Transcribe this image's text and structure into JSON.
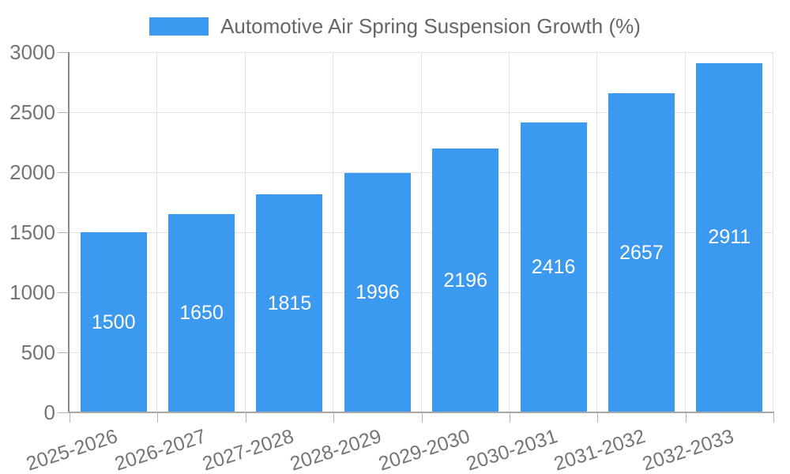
{
  "legend": {
    "label": "Automotive Air Spring Suspension Growth (%)"
  },
  "chart_data": {
    "type": "bar",
    "title": "Automotive Air Spring Suspension Growth (%)",
    "categories": [
      "2025-2026",
      "2026-2027",
      "2027-2028",
      "2028-2029",
      "2029-2030",
      "2030-2031",
      "2031-2032",
      "2032-2033"
    ],
    "series": [
      {
        "name": "Automotive Air Spring Suspension Growth (%)",
        "values": [
          1500,
          1650,
          1815,
          1996,
          2196,
          2416,
          2657,
          2911
        ]
      }
    ],
    "values": [
      1500,
      1650,
      1815,
      1996,
      2196,
      2416,
      2657,
      2911
    ],
    "value_labels": [
      "1500",
      "1650",
      "1815",
      "1996",
      "2196",
      "2416",
      "2657",
      "2911"
    ],
    "xlabel": "",
    "ylabel": "",
    "ylim": [
      0,
      3000
    ],
    "yticks": [
      0,
      500,
      1000,
      1500,
      2000,
      2500,
      3000
    ],
    "grid": true,
    "legend_position": "top-center",
    "x_tick_rotation_deg": -18,
    "colors": {
      "bar": "#3B99EF",
      "grid": "#E2E2E2",
      "axis_y": "#8A8A8A",
      "axis_x": "#A8A8A8",
      "tick": "#B3B3B3",
      "axis_text": "#757575",
      "legend_text": "#666666",
      "value_text": "#FFFFFF",
      "background": "#FFFFFF"
    }
  }
}
